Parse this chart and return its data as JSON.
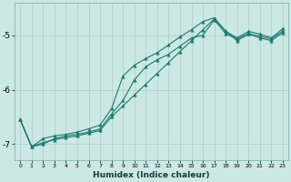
{
  "xlabel": "Humidex (Indice chaleur)",
  "bg_color": "#cce8e4",
  "grid_color": "#aacccc",
  "line_color": "#1a7a6e",
  "x_hours": [
    0,
    1,
    2,
    3,
    4,
    5,
    6,
    7,
    8,
    9,
    10,
    11,
    12,
    13,
    14,
    15,
    16,
    17,
    18,
    19,
    20,
    21,
    22,
    23
  ],
  "line1_y": [
    -6.55,
    -7.05,
    -7.0,
    -6.9,
    -6.85,
    -6.82,
    -6.78,
    -6.72,
    -6.45,
    -6.2,
    -5.82,
    -5.58,
    -5.45,
    -5.35,
    -5.2,
    -5.05,
    -5.0,
    -4.72,
    -4.97,
    -5.07,
    -4.97,
    -5.02,
    -5.07,
    -4.92
  ],
  "line2_y": [
    -6.55,
    -7.05,
    -6.9,
    -6.85,
    -6.82,
    -6.78,
    -6.72,
    -6.65,
    -6.35,
    -5.75,
    -5.55,
    -5.43,
    -5.32,
    -5.18,
    -5.03,
    -4.9,
    -4.75,
    -4.68,
    -4.93,
    -5.05,
    -4.93,
    -4.98,
    -5.05,
    -4.88
  ],
  "line3_y": [
    -6.55,
    -7.05,
    -6.97,
    -6.92,
    -6.88,
    -6.85,
    -6.8,
    -6.75,
    -6.5,
    -6.3,
    -6.1,
    -5.9,
    -5.7,
    -5.5,
    -5.3,
    -5.1,
    -4.9,
    -4.7,
    -4.92,
    -5.1,
    -4.98,
    -5.05,
    -5.1,
    -4.95
  ],
  "ylim": [
    -7.3,
    -4.4
  ],
  "xlim": [
    -0.5,
    23.5
  ],
  "yticks": [
    -7,
    -6,
    -5
  ]
}
